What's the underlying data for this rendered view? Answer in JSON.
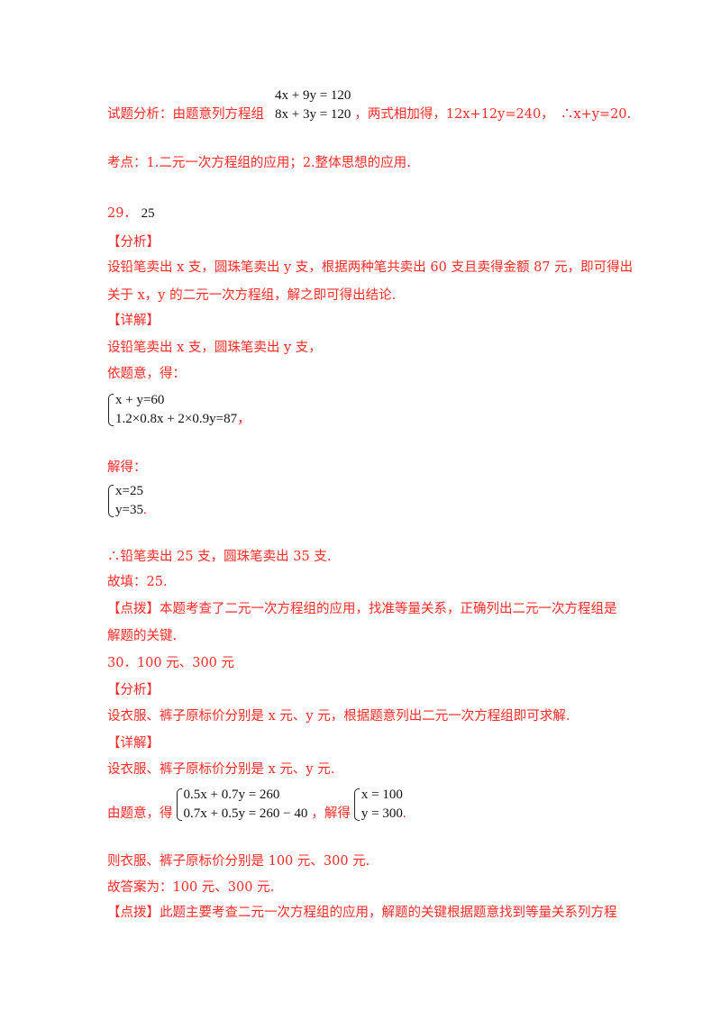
{
  "q28": {
    "analysis_prefix": "试题分析：由题意列方程组",
    "eq1": "4x + 9y = 120",
    "eq2": "8x + 3y = 120",
    "analysis_suffix": "，两式相加得，12x+12y=240，　∴x+y=20.",
    "kaodian": "考点：1.二元一次方程组的应用；2.整体思想的应用."
  },
  "q29": {
    "number": "29．",
    "answer": "25",
    "analysis_head": "【分析】",
    "analysis_1": "设铅笔卖出 x 支，圆珠笔卖出 y 支，根据两种笔共卖出 60 支且卖得金额 87 元，即可得出",
    "analysis_2": "关于 x，y 的二元一次方程组，解之即可得出结论.",
    "detail_head": "【详解】",
    "detail_1": "设铅笔卖出 x 支，圆珠笔卖出 y 支，",
    "detail_2": "依题意，得：",
    "eq1": "x + y=60",
    "eq2": "1.2×0.8x + 2×0.9y=87",
    "eq_end": "，",
    "solve_label": "解得：",
    "sol1": "x=25",
    "sol2": "y=35",
    "sol_end": ".",
    "conclusion": "∴铅笔卖出 25 支，圆珠笔卖出 35 支.",
    "fill": "故填：25.",
    "tip_1": "【点拨】本题考查了二元一次方程组的应用，找准等量关系，正确列出二元一次方程组是",
    "tip_2": "解题的关键."
  },
  "q30": {
    "title": "30．100 元、300 元",
    "analysis_head": "【分析】",
    "analysis_1": "设衣服、裤子原标价分别是 x 元、y 元，根据题意列出二元一次方程组即可求解.",
    "detail_head": "【详解】",
    "detail_1": "设衣服、裤子原标价分别是 x 元、y 元.",
    "by_label": "由题意，得",
    "eq1": "0.5x + 0.7y = 260",
    "eq2": "0.7x + 0.5y = 260 − 40",
    "solve_label": "，解得",
    "sol1": "x = 100",
    "sol2": "y = 300",
    "sol_end": ".",
    "conclusion": "则衣服、裤子原标价分别是 100 元、300 元.",
    "answer": "故答案为：100 元、300 元.",
    "tip_1": "【点拨】此题主要考查二元一次方程组的应用，解题的关键根据题意找到等量关系列方程"
  }
}
